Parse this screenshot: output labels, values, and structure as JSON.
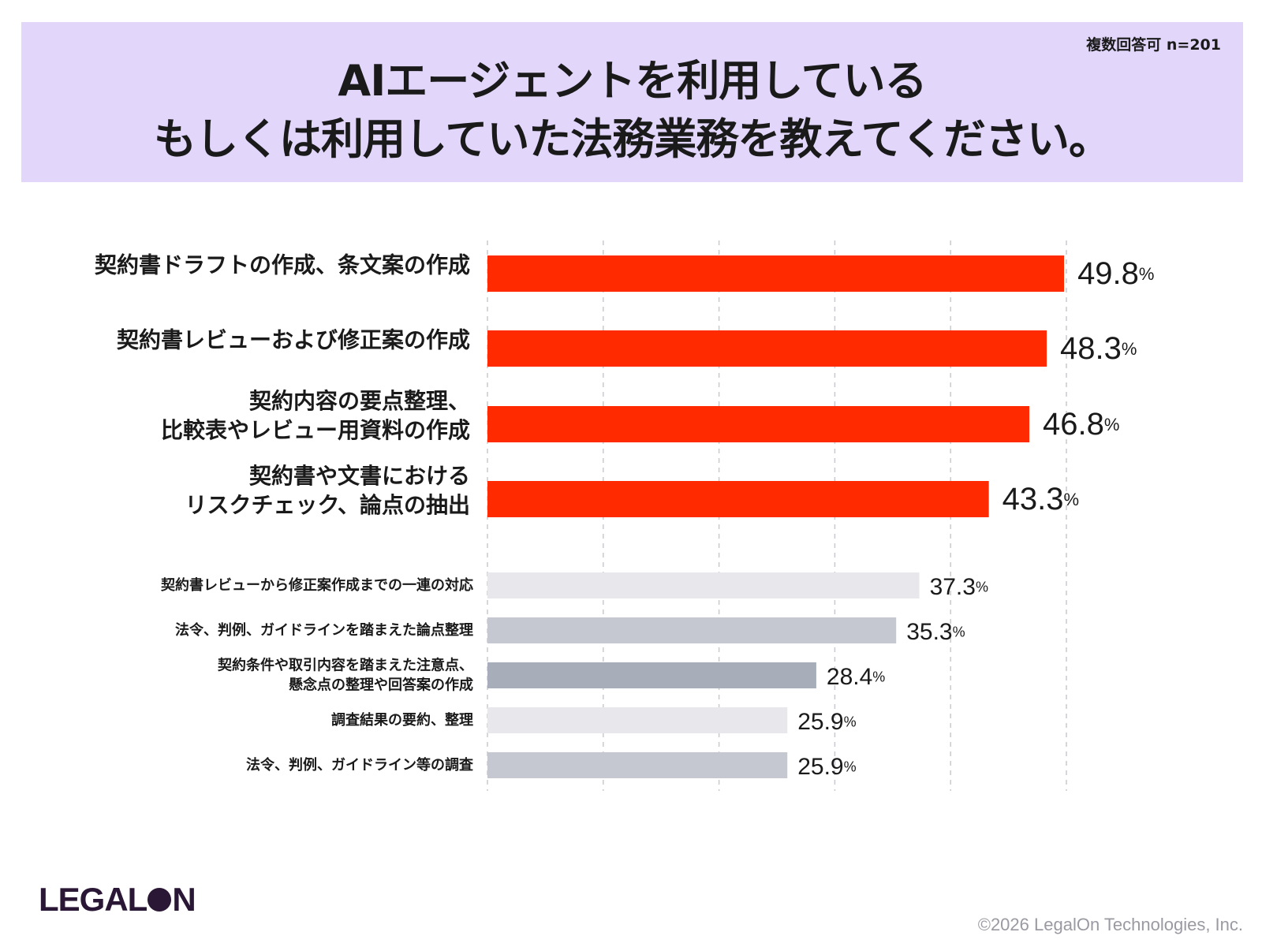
{
  "header": {
    "note": "複数回答可 n=201",
    "title_line1": "AIエージェントを利用している",
    "title_line2": "もしくは利用していた法務業務を教えてください。"
  },
  "chart_data": {
    "type": "bar",
    "orientation": "horizontal",
    "title": "AIエージェントを利用している もしくは利用していた法務業務を教えてください。",
    "xlim": [
      0,
      50
    ],
    "grid": true,
    "unit": "%",
    "categories": [
      [
        "契約書ドラフトの作成、条文案の作成"
      ],
      [
        "契約書レビューおよび修正案の作成"
      ],
      [
        "契約内容の要点整理、",
        "比較表やレビュー用資料の作成"
      ],
      [
        "契約書や文書における",
        "リスクチェック、論点の抽出"
      ],
      [
        "契約書レビューから修正案作成までの一連の対応"
      ],
      [
        "法令、判例、ガイドラインを踏まえた論点整理"
      ],
      [
        "契約条件や取引内容を踏まえた注意点、",
        "懸念点の整理や回答案の作成"
      ],
      [
        "調査結果の要約、整理"
      ],
      [
        "法令、判例、ガイドライン等の調査"
      ]
    ],
    "values": [
      49.8,
      48.3,
      46.8,
      43.3,
      37.3,
      35.3,
      28.4,
      25.9,
      25.9
    ],
    "value_labels": [
      "49.8",
      "48.3",
      "46.8",
      "43.3",
      "37.3",
      "35.3",
      "28.4",
      "25.9",
      "25.9"
    ],
    "colors": [
      "#ff2a00",
      "#ff2a00",
      "#ff2a00",
      "#ff2a00",
      "#e8e8ec",
      "#c5c8d1",
      "#a7adb9",
      "#e8e8ec",
      "#c5c8d1"
    ]
  },
  "footer": {
    "logo": "LEGALON",
    "logo_left": "LEGAL",
    "logo_right": "N",
    "copyright": "©2026 LegalOn Technologies, Inc."
  }
}
